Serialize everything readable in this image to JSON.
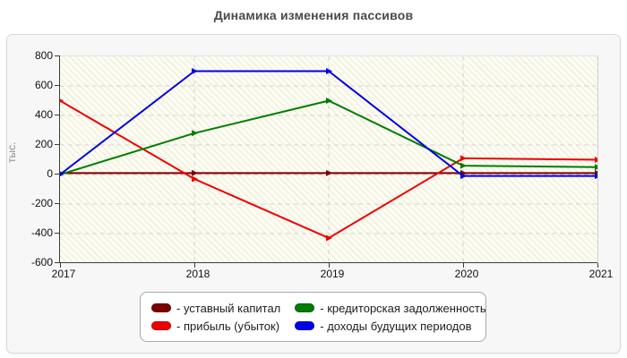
{
  "title": "Динамика изменения пассивов",
  "y_axis": {
    "label": "тыс.",
    "ticks": [
      800,
      600,
      400,
      200,
      0,
      -200,
      -400,
      -600
    ]
  },
  "x_axis": {
    "ticks": [
      "2017",
      "2018",
      "2019",
      "2020",
      "2021"
    ]
  },
  "legend": {
    "items": [
      {
        "label": "- уставный капитал",
        "color": "#7a0000"
      },
      {
        "label": "- прибыль (убыток)",
        "color": "#ee0000"
      },
      {
        "label": "- кредиторская задолженность",
        "color": "#007d00"
      },
      {
        "label": "- доходы будущих периодов",
        "color": "#0000e6"
      }
    ]
  },
  "chart_data": {
    "type": "line",
    "title": "Динамика изменения пассивов",
    "xlabel": "",
    "ylabel": "тыс.",
    "categories": [
      2017,
      2018,
      2019,
      2020,
      2021
    ],
    "series": [
      {
        "name": "уставный капитал",
        "color": "#7a0000",
        "values": [
          10,
          10,
          10,
          10,
          10
        ]
      },
      {
        "name": "прибыль (убыток)",
        "color": "#ee0000",
        "values": [
          500,
          -30,
          -430,
          110,
          100
        ]
      },
      {
        "name": "кредиторская задолженность",
        "color": "#007d00",
        "values": [
          0,
          280,
          500,
          60,
          50
        ]
      },
      {
        "name": "доходы будущих периодов",
        "color": "#0000e6",
        "values": [
          0,
          700,
          700,
          -10,
          -10
        ]
      }
    ],
    "ylim": [
      -600,
      800
    ],
    "ytick_step": 200,
    "grid": true,
    "grid_color": "#d4d4d4",
    "zero_line_color": "#e6b4b4",
    "legend_position": "bottom"
  }
}
